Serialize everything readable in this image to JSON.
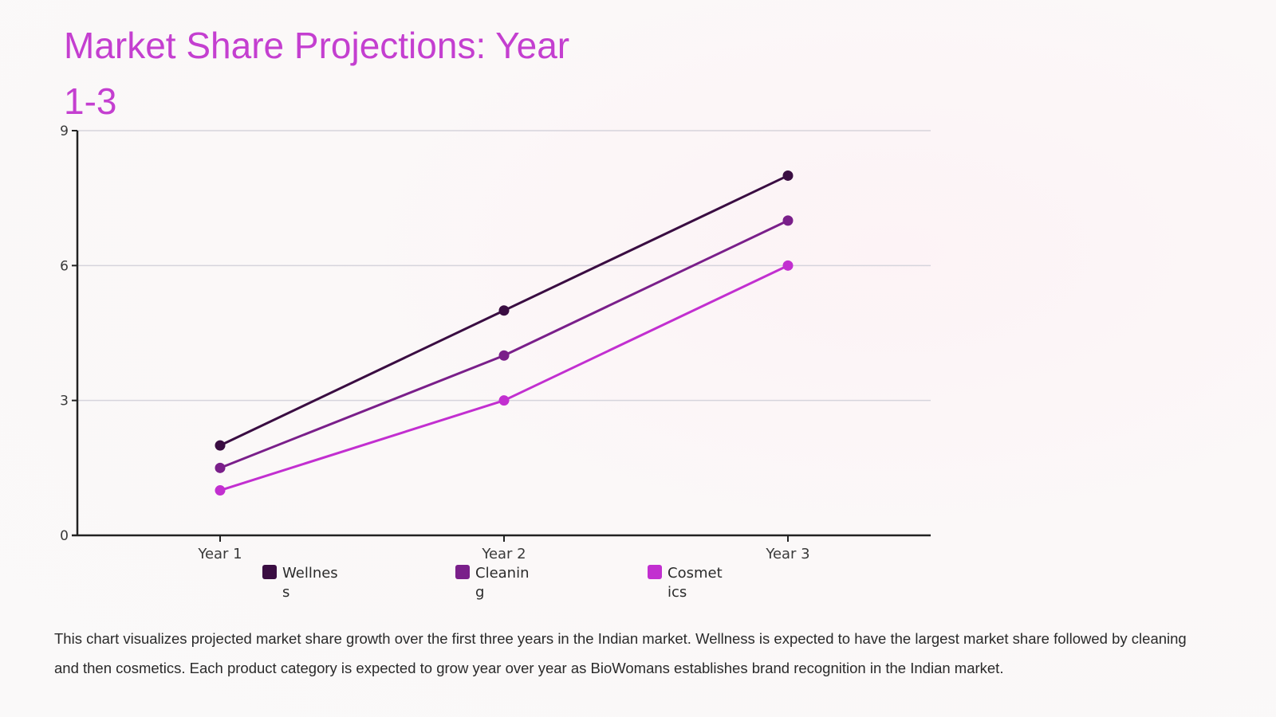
{
  "title": "Market Share Projections: Year 1-3",
  "description": "This chart visualizes projected market share growth over the first three years in the Indian market. Wellness is expected to have the largest market share followed by cleaning and then cosmetics. Each product category is expected to grow year over year as BioWomans establishes brand recognition in the Indian market.",
  "chart_data": {
    "type": "line",
    "title": "Market Share Projections: Year 1-3",
    "xlabel": "",
    "ylabel": "",
    "categories": [
      "Year 1",
      "Year 2",
      "Year 3"
    ],
    "ylim": [
      0,
      9
    ],
    "yticks": [
      0,
      3,
      6,
      9
    ],
    "grid": true,
    "legend_placement": "bottom",
    "series": [
      {
        "name": "Wellness",
        "color": "#3a0d42",
        "values": [
          2,
          5,
          8
        ]
      },
      {
        "name": "Cleaning",
        "color": "#7a1f8a",
        "values": [
          1.5,
          4,
          7
        ]
      },
      {
        "name": "Cosmetics",
        "color": "#c22fd0",
        "values": [
          1,
          3,
          6
        ]
      }
    ]
  }
}
